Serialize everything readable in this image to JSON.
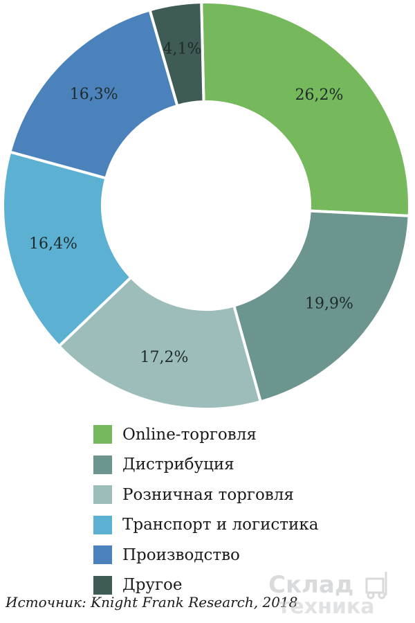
{
  "chart_data": {
    "type": "pie",
    "donut": true,
    "categories": [
      "Online-торговля",
      "Дистрибуция",
      "Розничная торговля",
      "Транспорт и логистика",
      "Производство",
      "Другое"
    ],
    "values": [
      26.2,
      19.9,
      17.2,
      16.4,
      16.3,
      4.1
    ],
    "data_labels": [
      "26,2%",
      "19,9%",
      "17,2%",
      "16,4%",
      "16,3%",
      "4,1%"
    ],
    "colors": [
      "#76b85c",
      "#6d958f",
      "#9dbdba",
      "#5cb1d2",
      "#4b82bb",
      "#3e5b56"
    ],
    "legend_position": "bottom"
  },
  "source": "Источник: Knight Frank Research, 2018",
  "watermark": {
    "line1": "Склад",
    "line2": "техника"
  }
}
